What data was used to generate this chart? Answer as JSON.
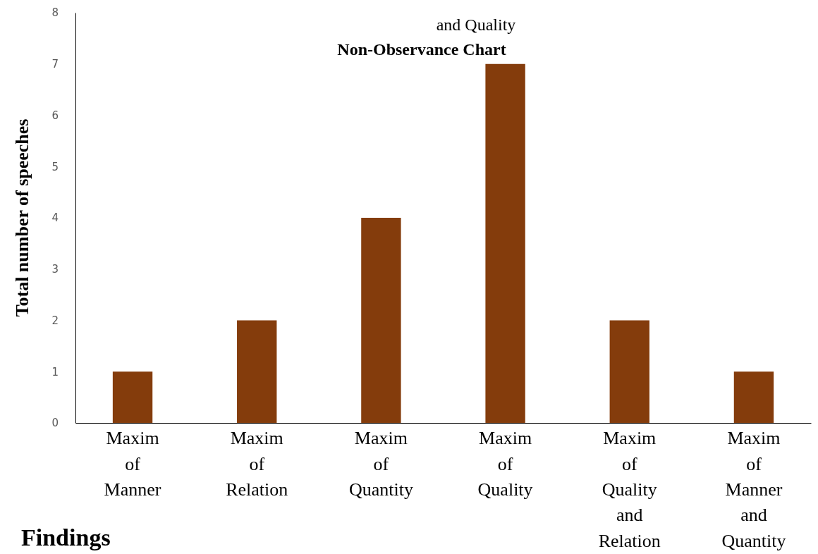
{
  "chart_data": {
    "type": "bar",
    "title": "Non-Observance Chart",
    "ylabel": "Total number of speeches",
    "categories": [
      "Maxim of Manner",
      "Maxim of Relation",
      "Maxim of Quantity",
      "Maxim of Quality",
      "Maxim of Quality and Relation",
      "Maxim of Manner and Quantity"
    ],
    "values": [
      1,
      2,
      4,
      7,
      2,
      1
    ],
    "color": "#843c0c",
    "ylim": [
      0,
      8
    ],
    "yticks": [
      0,
      1,
      2,
      3,
      4,
      5,
      6,
      7,
      8
    ],
    "grid": false,
    "annotations": [
      "and Quality",
      "Findings"
    ]
  }
}
